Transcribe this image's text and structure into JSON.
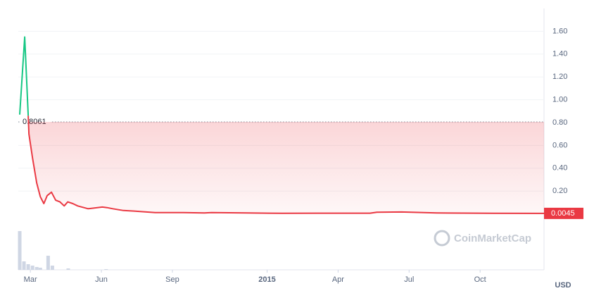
{
  "chart_data": {
    "type": "line",
    "xlim": [
      1.49,
      23.7
    ],
    "ylim": [
      -0.49,
      1.8
    ],
    "xticks": [
      {
        "value": 2,
        "label": "Mar"
      },
      {
        "value": 5,
        "label": "Jun"
      },
      {
        "value": 8,
        "label": "Sep"
      },
      {
        "value": 12,
        "label": "2015"
      },
      {
        "value": 15,
        "label": "Apr"
      },
      {
        "value": 18,
        "label": "Jul"
      },
      {
        "value": 21,
        "label": "Oct"
      }
    ],
    "yticks": [
      {
        "value": 0.2,
        "label": "0.20"
      },
      {
        "value": 0.4,
        "label": "0.40"
      },
      {
        "value": 0.6,
        "label": "0.60"
      },
      {
        "value": 0.8,
        "label": "0.80"
      },
      {
        "value": 1.0,
        "label": "1.00"
      },
      {
        "value": 1.2,
        "label": "1.20"
      },
      {
        "value": 1.4,
        "label": "1.40"
      },
      {
        "value": 1.6,
        "label": "1.60"
      }
    ],
    "grid": true,
    "y_unit": "USD",
    "reference_value": 0.8061,
    "current_price": 0.0045,
    "watermark": "CoinMarketCap",
    "series": [
      {
        "color": "#16c784",
        "x": [
          1.55,
          1.76,
          1.91
        ],
        "values": [
          0.87,
          1.55,
          0.86
        ]
      },
      {
        "color": "#ea3943",
        "x": [
          1.91,
          1.94,
          2.09,
          2.27,
          2.42,
          2.57,
          2.71,
          2.89,
          3.07,
          3.25,
          3.43,
          3.58,
          3.79,
          4.0,
          4.44,
          4.83,
          5.04,
          5.24,
          5.48,
          5.93,
          6.38,
          7.27,
          8.46,
          9.35,
          9.65,
          11.14,
          12.63,
          14.11,
          16.35,
          16.64,
          17.68,
          19.17,
          21.55,
          23.7
        ],
        "values": [
          0.86,
          0.7,
          0.49,
          0.27,
          0.15,
          0.09,
          0.16,
          0.19,
          0.12,
          0.105,
          0.07,
          0.105,
          0.09,
          0.07,
          0.045,
          0.055,
          0.06,
          0.055,
          0.045,
          0.03,
          0.025,
          0.012,
          0.012,
          0.008,
          0.012,
          0.008,
          0.005,
          0.006,
          0.006,
          0.015,
          0.017,
          0.008,
          0.005,
          0.0045
        ]
      }
    ],
    "volume": {
      "color": "#cfd6e4",
      "x": [
        1.55,
        1.73,
        1.91,
        2.09,
        2.27,
        2.42,
        2.75,
        2.93,
        3.6,
        5.2
      ],
      "values": [
        55,
        12,
        8,
        6,
        4,
        3,
        20,
        6,
        2,
        1
      ]
    }
  }
}
